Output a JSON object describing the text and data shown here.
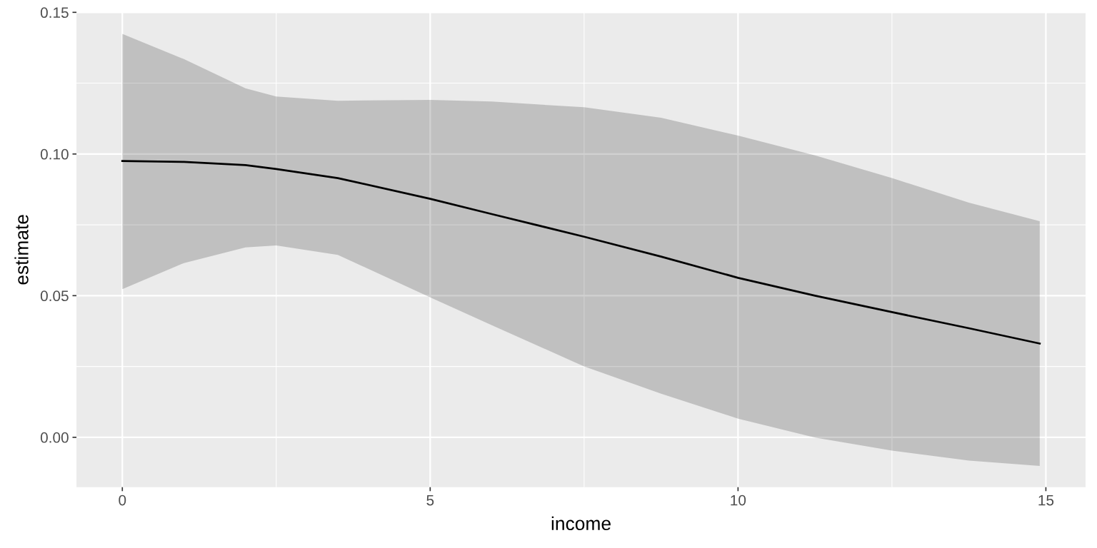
{
  "chart_data": {
    "type": "line",
    "xlabel": "income",
    "ylabel": "estimate",
    "x": [
      0,
      1,
      2,
      2.5,
      3.5,
      5,
      6,
      7.5,
      8.75,
      10,
      11.25,
      12.5,
      13.75,
      14.9
    ],
    "series": [
      {
        "color": "#000000",
        "values": [
          0.0975,
          0.0972,
          0.0961,
          0.0947,
          0.0915,
          0.0842,
          0.0788,
          0.0708,
          0.0638,
          0.0563,
          0.05,
          0.0442,
          0.0385,
          0.0331
        ],
        "lower": [
          0.0523,
          0.0615,
          0.067,
          0.0677,
          0.0644,
          0.0494,
          0.0396,
          0.025,
          0.0154,
          0.0066,
          -0.0001,
          -0.0047,
          -0.0082,
          -0.0101
        ],
        "upper": [
          0.1424,
          0.1335,
          0.1232,
          0.1203,
          0.1188,
          0.1191,
          0.1185,
          0.1165,
          0.1128,
          0.1065,
          0.0995,
          0.0915,
          0.0828,
          0.0763
        ]
      }
    ],
    "xlim": [
      -0.745,
      15.645
    ],
    "ylim": [
      -0.0176,
      0.1501
    ],
    "xticks": [
      0,
      5,
      10,
      15
    ],
    "yticks": [
      {
        "value": 0,
        "label": "0.00"
      },
      {
        "value": 0.05,
        "label": "0.05"
      },
      {
        "value": 0.1,
        "label": "0.10"
      },
      {
        "value": 0.15,
        "label": "0.15"
      }
    ],
    "grid": true,
    "marker": "none",
    "line_style": "solid"
  }
}
